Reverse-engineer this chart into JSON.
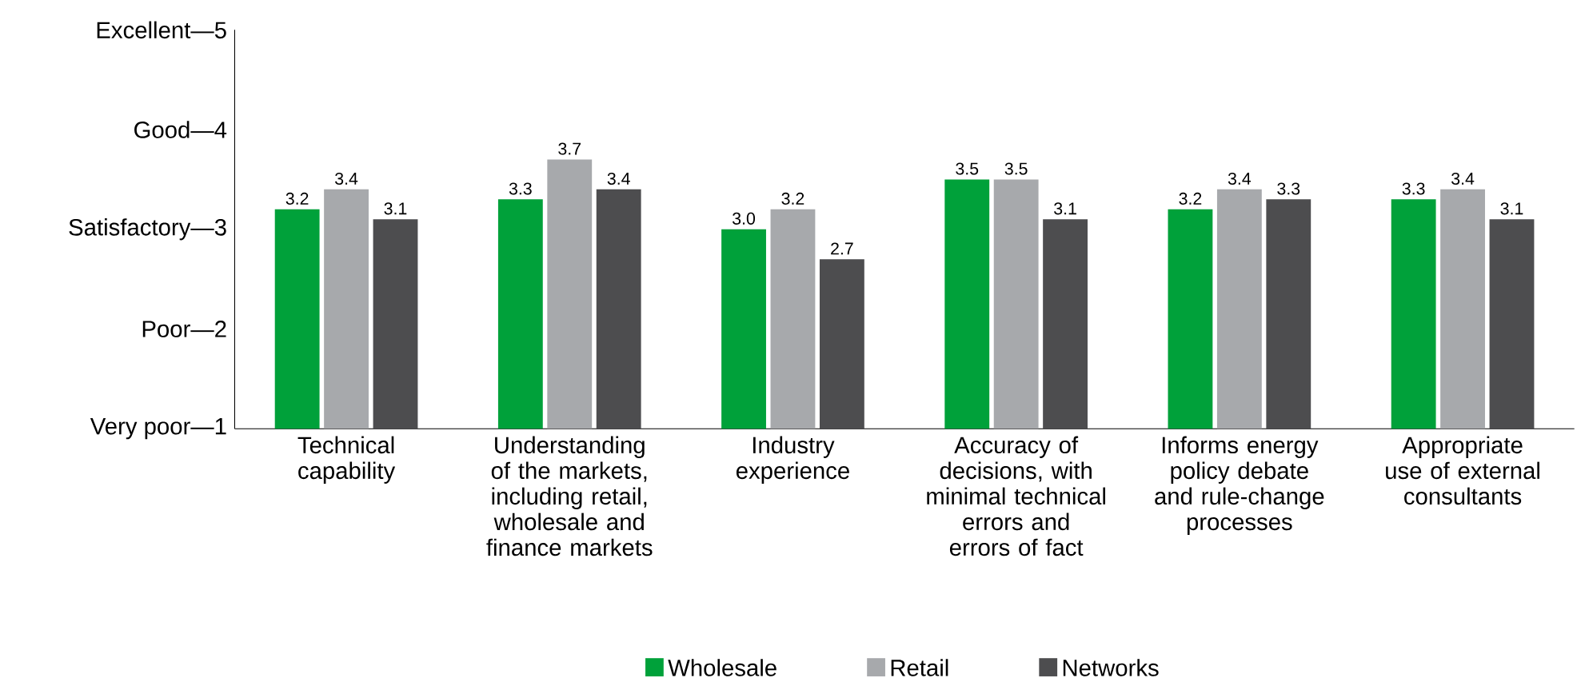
{
  "chart_data": {
    "type": "bar",
    "categories": [
      "Technical capability",
      "Understanding of the markets, including retail, wholesale and finance markets",
      "Industry experience",
      "Accuracy of decisions, with minimal technical errors and errors of fact",
      "Informs energy policy debate and rule-change processes",
      "Appropriate use of external consultants"
    ],
    "series": [
      {
        "name": "Wholesale",
        "color": "#00a13a",
        "values": [
          3.2,
          3.3,
          3.0,
          3.5,
          3.2,
          3.3
        ],
        "value_labels": [
          "3.2",
          "3.3",
          "3.0",
          "3.5",
          "3.2",
          "3.3"
        ]
      },
      {
        "name": "Retail",
        "color": "#a7a9ac",
        "values": [
          3.4,
          3.7,
          3.2,
          3.5,
          3.4,
          3.4
        ],
        "value_labels": [
          "3.4",
          "3.7",
          "3.2",
          "3.5",
          "3.4",
          "3.4"
        ]
      },
      {
        "name": "Networks",
        "color": "#4d4d4f",
        "values": [
          3.1,
          3.4,
          2.7,
          3.1,
          3.3,
          3.1
        ],
        "value_labels": [
          "3.1",
          "3.4",
          "2.7",
          "3.1",
          "3.3",
          "3.1"
        ]
      }
    ],
    "ylim": [
      1,
      5
    ],
    "yticks": [
      {
        "value": 1,
        "label": "Very poor—1"
      },
      {
        "value": 2,
        "label": "Poor—2"
      },
      {
        "value": 3,
        "label": "Satisfactory—3"
      },
      {
        "value": 4,
        "label": "Good—4"
      },
      {
        "value": 5,
        "label": "Excellent—5"
      }
    ],
    "legend": "bottom",
    "grid": false
  }
}
